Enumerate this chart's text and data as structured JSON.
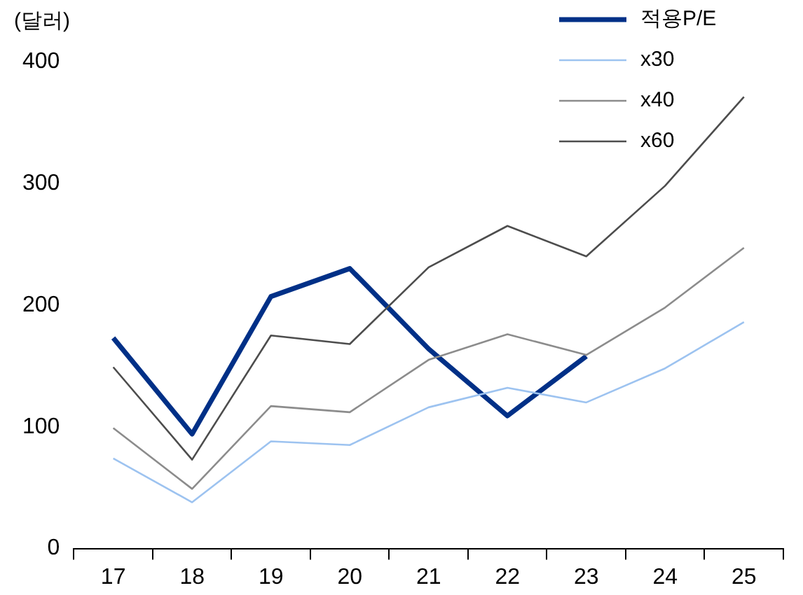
{
  "chart_data": {
    "type": "line",
    "ylabel": "(달러)",
    "categories": [
      "17",
      "18",
      "19",
      "20",
      "21",
      "22",
      "23",
      "24",
      "25"
    ],
    "ylim": [
      0,
      400
    ],
    "yticks": [
      0,
      100,
      200,
      300,
      400
    ],
    "grid": false,
    "legend": "top right",
    "marker": "none",
    "line_style": "solid",
    "series": [
      {
        "name": "적용P/E",
        "color": "#003087",
        "values": [
          173,
          94,
          207,
          230,
          164,
          109,
          158,
          null,
          null
        ]
      },
      {
        "name": "x30",
        "color": "#9dc3f0",
        "values": [
          74,
          38,
          88,
          85,
          116,
          132,
          120,
          148,
          186
        ]
      },
      {
        "name": "x40",
        "color": "#8c8c8c",
        "values": [
          99,
          49,
          117,
          112,
          155,
          176,
          159,
          198,
          247
        ]
      },
      {
        "name": "x60",
        "color": "#4d4d4d",
        "values": [
          149,
          73,
          175,
          168,
          231,
          265,
          240,
          298,
          371
        ]
      }
    ]
  }
}
